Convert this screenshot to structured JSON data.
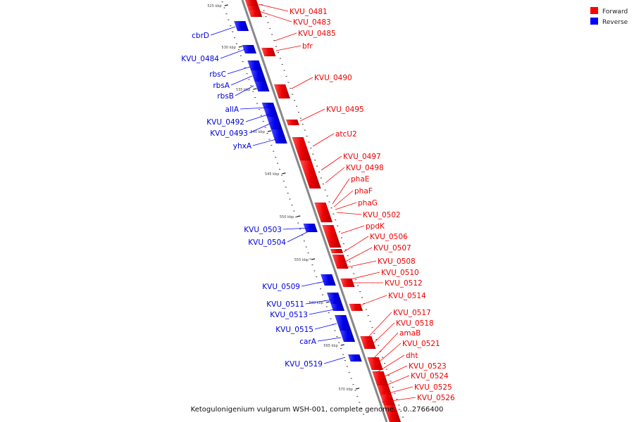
{
  "legend": {
    "forward": {
      "label": "Forward",
      "color": "#ff0000"
    },
    "reverse": {
      "label": "Reverse",
      "color": "#0000ff"
    }
  },
  "caption": "Ketogulonigenium vulgarum WSH-001, complete genome. - 0..2766400",
  "ticks": [
    "525 kbp",
    "530 kbp",
    "535 kbp",
    "540 kbp",
    "545 kbp",
    "550 kbp",
    "555 kbp",
    "560 kbp",
    "565 kbp",
    "570 kbp"
  ],
  "forward_genes": [
    "KVU_0481",
    "KVU_0483",
    "KVU_0485",
    "bfr",
    "KVU_0490",
    "KVU_0495",
    "atcU2",
    "KVU_0497",
    "KVU_0498",
    "phaE",
    "phaF",
    "phaG",
    "KVU_0502",
    "ppdK",
    "KVU_0506",
    "KVU_0507",
    "KVU_0508",
    "KVU_0510",
    "KVU_0512",
    "KVU_0514",
    "KVU_0517",
    "KVU_0518",
    "amaB",
    "KVU_0521",
    "dht",
    "KVU_0523",
    "KVU_0524",
    "KVU_0525",
    "KVU_0526"
  ],
  "reverse_genes": [
    "cbrD",
    "KVU_0484",
    "rbsC",
    "rbsA",
    "rbsB",
    "allA",
    "KVU_0492",
    "KVU_0493",
    "yhxA",
    "KVU_0503",
    "KVU_0504",
    "KVU_0509",
    "KVU_0511",
    "KVU_0513",
    "KVU_0515",
    "carA",
    "KVU_0519"
  ]
}
